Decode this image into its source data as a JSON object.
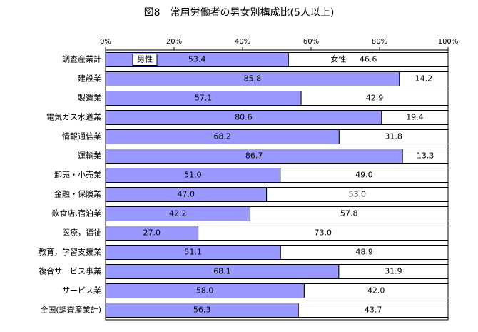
{
  "chart_data": {
    "type": "stacked-bar-horizontal",
    "title": "図8　常用労働者の男女別構成比(5人以上)",
    "categories": [
      "調査産業計",
      "建設業",
      "製造業",
      "電気ガス水道業",
      "情報通信業",
      "運輸業",
      "卸売・小売業",
      "金融・保険業",
      "飲食店,宿泊業",
      "医療，福祉",
      "教育，学習支援業",
      "複合サービス事業",
      "サービス業",
      "全国(調査産業計)"
    ],
    "series": [
      {
        "name": "男性",
        "color": "#9999ff",
        "values": [
          53.4,
          85.8,
          57.1,
          80.6,
          68.2,
          86.7,
          51.0,
          47.0,
          42.2,
          27.0,
          51.1,
          68.1,
          58.0,
          56.3
        ],
        "value_labels": [
          "53.4",
          "85.8",
          "57.1",
          "80.6",
          "68.2",
          "86.7",
          "51.0",
          "47.0",
          "42.2",
          "27.0",
          "51.1",
          "68.1",
          "58.0",
          "56.3"
        ]
      },
      {
        "name": "女性",
        "color": "#ffffff",
        "values": [
          46.6,
          14.2,
          42.9,
          19.4,
          31.8,
          13.3,
          49.0,
          53.0,
          57.8,
          73.0,
          48.9,
          31.9,
          42.0,
          43.7
        ],
        "value_labels": [
          "46.6",
          "14.2",
          "42.9",
          "19.4",
          "31.8",
          "13.3",
          "49.0",
          "53.0",
          "57.8",
          "73.0",
          "48.9",
          "31.9",
          "42.0",
          "43.7"
        ]
      }
    ],
    "xlim": [
      0,
      100
    ],
    "xticks": [
      {
        "value": 0,
        "label": "0%"
      },
      {
        "value": 20,
        "label": "20%"
      },
      {
        "value": 40,
        "label": "40%"
      },
      {
        "value": 60,
        "label": "60%"
      },
      {
        "value": 80,
        "label": "80%"
      },
      {
        "value": 100,
        "label": "100%"
      }
    ],
    "grid": false
  }
}
